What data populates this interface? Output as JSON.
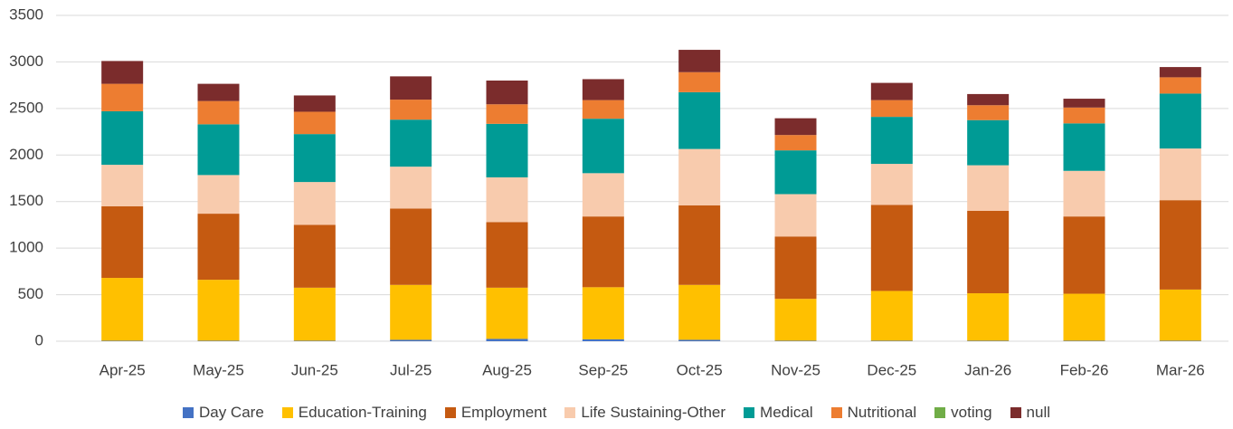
{
  "chart_data": {
    "type": "stacked-bar",
    "categories": [
      "Apr-25",
      "May-25",
      "Jun-25",
      "Jul-25",
      "Aug-25",
      "Sep-25",
      "Oct-25",
      "Nov-25",
      "Dec-25",
      "Jan-26",
      "Feb-26",
      "Mar-26"
    ],
    "series": [
      {
        "name": "Day Care",
        "color": "#4472c4",
        "values": [
          5,
          5,
          5,
          15,
          25,
          20,
          15,
          5,
          5,
          5,
          5,
          5
        ]
      },
      {
        "name": "Education-Training",
        "color": "#ffc000",
        "values": [
          675,
          655,
          570,
          590,
          550,
          560,
          590,
          450,
          535,
          510,
          505,
          550
        ]
      },
      {
        "name": "Employment",
        "color": "#c55a11",
        "values": [
          770,
          710,
          675,
          820,
          705,
          760,
          855,
          670,
          925,
          885,
          830,
          960
        ]
      },
      {
        "name": "Life Sustaining-Other",
        "color": "#f8cbad",
        "values": [
          445,
          415,
          460,
          450,
          480,
          465,
          605,
          455,
          440,
          490,
          490,
          555
        ]
      },
      {
        "name": "Medical",
        "color": "#009b95",
        "values": [
          575,
          545,
          515,
          505,
          575,
          585,
          610,
          470,
          505,
          485,
          510,
          590
        ]
      },
      {
        "name": "Nutritional",
        "color": "#ed7d31",
        "values": [
          295,
          250,
          240,
          215,
          210,
          200,
          215,
          165,
          180,
          160,
          170,
          175
        ]
      },
      {
        "name": "voting",
        "color": "#70ad47",
        "values": [
          0,
          0,
          0,
          0,
          0,
          0,
          0,
          0,
          0,
          0,
          0,
          0
        ]
      },
      {
        "name": "null",
        "color": "#7b2c2c",
        "values": [
          245,
          185,
          175,
          250,
          255,
          225,
          240,
          180,
          185,
          120,
          95,
          110
        ]
      }
    ],
    "ylim": [
      0,
      3500
    ],
    "yticks": [
      0,
      500,
      1000,
      1500,
      2000,
      2500,
      3000,
      3500
    ],
    "grid": true,
    "legend": "bottom"
  }
}
